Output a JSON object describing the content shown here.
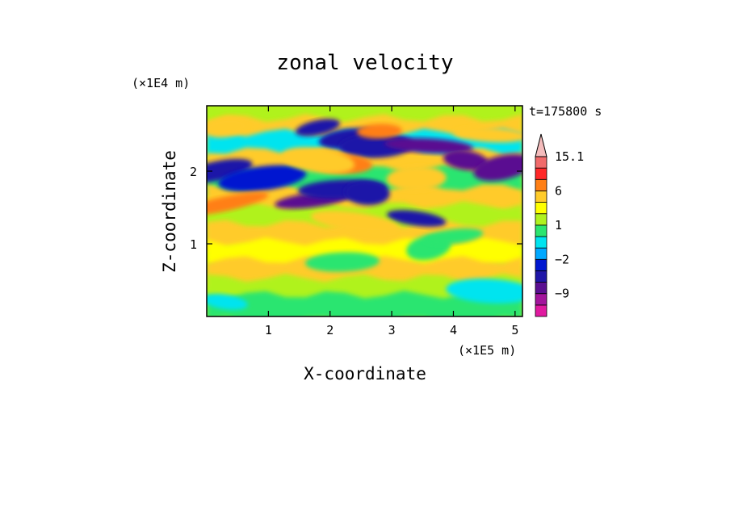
{
  "chart_data": {
    "type": "heatmap",
    "title": "zonal velocity",
    "xlabel": "X-coordinate",
    "ylabel": "Z-coordinate",
    "x_unit": "(×1E5 m)",
    "y_unit": "(×1E4 m)",
    "time_label": "t=175800 s",
    "xlim": [
      0,
      5.12
    ],
    "ylim": [
      0,
      2.9
    ],
    "x_ticks": [
      "1",
      "2",
      "3",
      "4",
      "5"
    ],
    "x_tick_values": [
      1,
      2,
      3,
      4,
      5
    ],
    "y_ticks": [
      "1",
      "2"
    ],
    "y_tick_values": [
      1,
      2
    ],
    "colorbar": {
      "levels": [
        -15,
        -12,
        -9,
        -6,
        -3,
        -2,
        -1,
        0,
        1,
        2,
        3,
        6,
        9,
        12,
        15.1
      ],
      "colors": [
        "#e01aa0",
        "#a3159c",
        "#5a0f91",
        "#1f16a8",
        "#0017d0",
        "#00a8ff",
        "#00e4ef",
        "#2ce56f",
        "#b0f21f",
        "#ffff00",
        "#ffcb2a",
        "#ff7f15",
        "#ff2828",
        "#f16b6b",
        "#f4bcbc"
      ],
      "tick_labels": [
        "15.1",
        "6",
        "1",
        "−2",
        "−9"
      ],
      "tick_values": [
        15.1,
        6,
        1,
        -2,
        -9
      ],
      "extend": "max"
    },
    "field_bands": [
      {
        "z": 2.75,
        "value": 1
      },
      {
        "z": 2.55,
        "value": 4
      },
      {
        "z": 2.35,
        "value": -1
      },
      {
        "z": 2.1,
        "value": 5
      },
      {
        "z": 1.85,
        "value": 0
      },
      {
        "z": 1.6,
        "value": 4
      },
      {
        "z": 1.35,
        "value": 1
      },
      {
        "z": 1.1,
        "value": 3
      },
      {
        "z": 0.85,
        "value": 2
      },
      {
        "z": 0.6,
        "value": 3
      },
      {
        "z": 0.35,
        "value": 1
      },
      {
        "z": 0.12,
        "value": 0
      }
    ],
    "features": [
      {
        "x": 1.8,
        "z": 2.6,
        "value": -6
      },
      {
        "x": 2.3,
        "z": 2.45,
        "value": -5
      },
      {
        "x": 2.75,
        "z": 2.35,
        "value": -4
      },
      {
        "x": 3.6,
        "z": 2.35,
        "value": -8
      },
      {
        "x": 4.2,
        "z": 2.15,
        "value": -8
      },
      {
        "x": 4.8,
        "z": 2.05,
        "value": -8
      },
      {
        "x": 1.7,
        "z": 1.6,
        "value": -7
      },
      {
        "x": 2.2,
        "z": 1.75,
        "value": -5
      },
      {
        "x": 2.6,
        "z": 1.7,
        "value": -6
      },
      {
        "x": 3.4,
        "z": 1.35,
        "value": -6
      },
      {
        "x": 0.15,
        "z": 2.0,
        "value": -4
      },
      {
        "x": 0.9,
        "z": 1.9,
        "value": -3
      },
      {
        "x": 2.8,
        "z": 2.55,
        "value": 6
      },
      {
        "x": 2.2,
        "z": 2.1,
        "value": 6
      },
      {
        "x": 1.8,
        "z": 2.15,
        "value": 5
      },
      {
        "x": 0.3,
        "z": 1.55,
        "value": 6
      },
      {
        "x": 0.3,
        "z": 2.6,
        "value": 5
      },
      {
        "x": 3.4,
        "z": 1.9,
        "value": 4
      },
      {
        "x": 4.6,
        "z": 2.5,
        "value": 4
      },
      {
        "x": 2.4,
        "z": 1.3,
        "value": 4
      },
      {
        "x": 3.6,
        "z": 0.95,
        "value": 0
      },
      {
        "x": 4.0,
        "z": 1.1,
        "value": 0
      },
      {
        "x": 2.2,
        "z": 0.75,
        "value": 0
      },
      {
        "x": 4.6,
        "z": 0.35,
        "value": -1
      },
      {
        "x": 0.3,
        "z": 0.2,
        "value": -1
      }
    ]
  }
}
